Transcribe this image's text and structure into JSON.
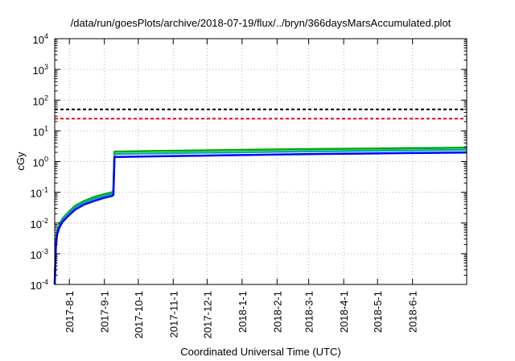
{
  "chart_data": {
    "type": "line",
    "title": "/data/run/goesPlots/archive/2018-07-19/flux/../bryn/366daysMarsAccumulated.plot",
    "xlabel": "Coordinated Universal Time (UTC)",
    "ylabel": "cGy",
    "yscale": "log",
    "ylim": [
      0.0001,
      10000
    ],
    "xlim": [
      "2017-07-19",
      "2018-07-19"
    ],
    "grid": true,
    "y_ticks": [
      {
        "value": 0.0001,
        "base": "10",
        "exp": "-4"
      },
      {
        "value": 0.001,
        "base": "10",
        "exp": "-3"
      },
      {
        "value": 0.01,
        "base": "10",
        "exp": "-2"
      },
      {
        "value": 0.1,
        "base": "10",
        "exp": "-1"
      },
      {
        "value": 1,
        "base": "10",
        "exp": "0"
      },
      {
        "value": 10,
        "base": "10",
        "exp": "1"
      },
      {
        "value": 100,
        "base": "10",
        "exp": "2"
      },
      {
        "value": 1000,
        "base": "10",
        "exp": "3"
      },
      {
        "value": 10000,
        "base": "10",
        "exp": "4"
      }
    ],
    "x_ticks": [
      {
        "date": "2017-08-01",
        "label": "2017-8-1"
      },
      {
        "date": "2017-09-01",
        "label": "2017-9-1"
      },
      {
        "date": "2017-10-01",
        "label": "2017-10-1"
      },
      {
        "date": "2017-11-01",
        "label": "2017-11-1"
      },
      {
        "date": "2017-12-01",
        "label": "2017-12-1"
      },
      {
        "date": "2018-01-01",
        "label": "2018-1-1"
      },
      {
        "date": "2018-02-01",
        "label": "2018-2-1"
      },
      {
        "date": "2018-03-01",
        "label": "2018-3-1"
      },
      {
        "date": "2018-04-01",
        "label": "2018-4-1"
      },
      {
        "date": "2018-05-01",
        "label": "2018-5-1"
      },
      {
        "date": "2018-06-01",
        "label": "2018-6-1"
      }
    ],
    "reference_lines": [
      {
        "value": 50,
        "color": "#000000",
        "style": "dashed"
      },
      {
        "value": 25,
        "color": "#ff0000",
        "style": "dashed"
      }
    ],
    "series": [
      {
        "color": "#00aa00",
        "x": [
          "2017-07-19",
          "2017-07-20",
          "2017-07-21",
          "2017-07-23",
          "2017-07-26",
          "2017-07-31",
          "2017-08-06",
          "2017-08-14",
          "2017-08-22",
          "2017-08-31",
          "2017-09-08",
          "2017-09-09",
          "2017-09-10",
          "2017-09-15",
          "2017-10-15",
          "2017-11-15",
          "2017-12-15",
          "2018-01-15",
          "2018-02-15",
          "2018-03-15",
          "2018-04-15",
          "2018-05-15",
          "2018-06-15",
          "2018-07-19"
        ],
        "y": [
          0.0001,
          0.002,
          0.005,
          0.009,
          0.014,
          0.022,
          0.036,
          0.052,
          0.068,
          0.085,
          0.1,
          0.11,
          2.1,
          2.12,
          2.2,
          2.28,
          2.36,
          2.44,
          2.5,
          2.57,
          2.63,
          2.7,
          2.76,
          2.82
        ]
      },
      {
        "color": "#00aaaa",
        "x": [
          "2017-07-19",
          "2017-07-20",
          "2017-07-21",
          "2017-07-23",
          "2017-07-26",
          "2017-07-31",
          "2017-08-06",
          "2017-08-14",
          "2017-08-22",
          "2017-08-31",
          "2017-09-08",
          "2017-09-09",
          "2017-09-10",
          "2017-09-15",
          "2017-10-15",
          "2017-11-15",
          "2017-12-15",
          "2018-01-15",
          "2018-02-15",
          "2018-03-15",
          "2018-04-15",
          "2018-05-15",
          "2018-06-15",
          "2018-07-19"
        ],
        "y": [
          0.0001,
          0.0018,
          0.0045,
          0.008,
          0.0125,
          0.02,
          0.032,
          0.047,
          0.06,
          0.076,
          0.09,
          0.097,
          1.75,
          1.77,
          1.84,
          1.91,
          1.98,
          2.05,
          2.11,
          2.17,
          2.23,
          2.29,
          2.34,
          2.4
        ]
      },
      {
        "color": "#0000ff",
        "x": [
          "2017-07-19",
          "2017-07-20",
          "2017-07-21",
          "2017-07-23",
          "2017-07-26",
          "2017-07-31",
          "2017-08-06",
          "2017-08-14",
          "2017-08-22",
          "2017-08-31",
          "2017-09-08",
          "2017-09-09",
          "2017-09-10",
          "2017-09-15",
          "2017-10-15",
          "2017-11-15",
          "2017-12-15",
          "2018-01-15",
          "2018-02-15",
          "2018-03-15",
          "2018-04-15",
          "2018-05-15",
          "2018-06-15",
          "2018-07-19"
        ],
        "y": [
          0.0001,
          0.0016,
          0.004,
          0.007,
          0.011,
          0.017,
          0.027,
          0.04,
          0.051,
          0.065,
          0.077,
          0.082,
          1.4,
          1.42,
          1.48,
          1.54,
          1.6,
          1.66,
          1.72,
          1.77,
          1.82,
          1.87,
          1.92,
          1.97
        ]
      }
    ]
  }
}
